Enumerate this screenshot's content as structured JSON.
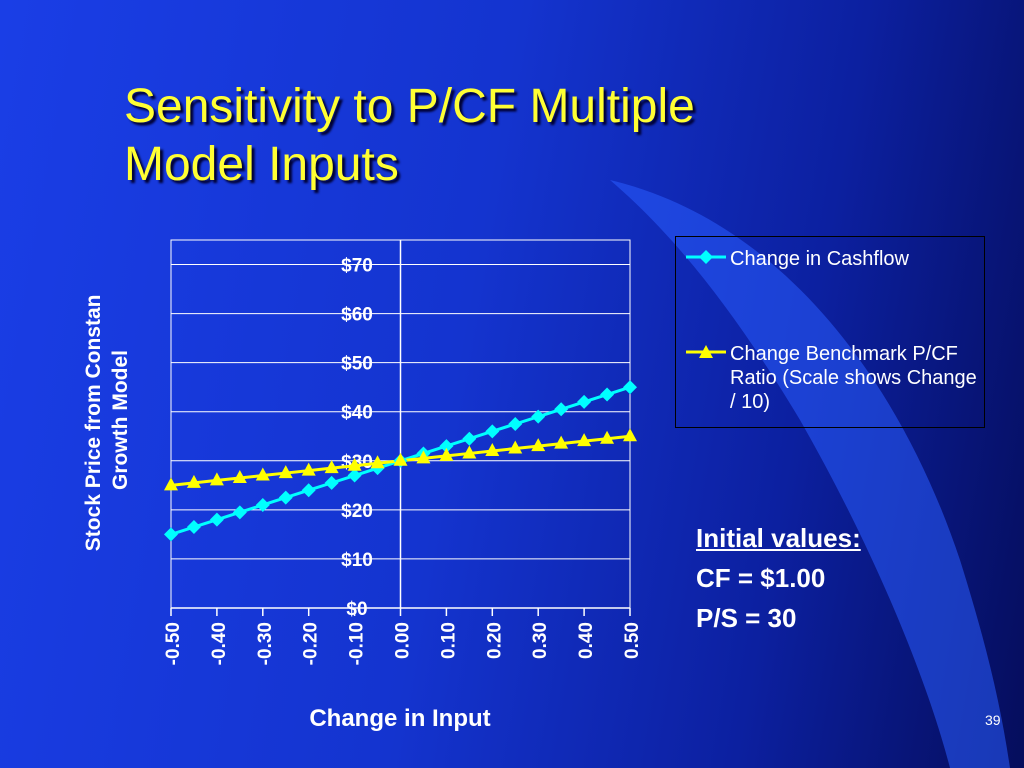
{
  "slide": {
    "title_line1": "Sensitivity to P/CF Multiple",
    "title_line2": "Model Inputs",
    "page_number": "39",
    "colors": {
      "background": "#1434cf",
      "title": "#ffff33",
      "text": "#ffffff"
    }
  },
  "initial_values": {
    "heading": "Initial values:",
    "lines": [
      "CF = $1.00",
      "P/S = 30"
    ]
  },
  "chart_data": {
    "type": "line",
    "xlabel": "Change in Input",
    "ylabel_lines": [
      "Stock Price from Constan",
      "Growth Model"
    ],
    "x": [
      -0.5,
      -0.45,
      -0.4,
      -0.35,
      -0.3,
      -0.25,
      -0.2,
      -0.15,
      -0.1,
      -0.05,
      0.0,
      0.05,
      0.1,
      0.15,
      0.2,
      0.25,
      0.3,
      0.35,
      0.4,
      0.45,
      0.5
    ],
    "xticks": [
      "-0.50",
      "-0.40",
      "-0.30",
      "-0.20",
      "-0.10",
      "0.00",
      "0.10",
      "0.20",
      "0.30",
      "0.40",
      "0.50"
    ],
    "yticks": [
      "$0",
      "$10",
      "$20",
      "$30",
      "$40",
      "$50",
      "$60",
      "$70"
    ],
    "ylim": [
      0,
      75
    ],
    "xlim": [
      -0.5,
      0.5
    ],
    "grid": true,
    "legend_position": "right",
    "series": [
      {
        "name": "Change in Cashflow",
        "marker": "diamond",
        "color": "#00ffff",
        "values": [
          15,
          16.5,
          18,
          19.5,
          21,
          22.5,
          24,
          25.5,
          27,
          28.5,
          30,
          31.5,
          33,
          34.5,
          36,
          37.5,
          39,
          40.5,
          42,
          43.5,
          45
        ]
      },
      {
        "name": "Change Benchmark P/CF Ratio (Scale shows Change / 10)",
        "marker": "triangle",
        "color": "#ffff00",
        "values": [
          25,
          25.5,
          26,
          26.5,
          27,
          27.5,
          28,
          28.5,
          29,
          29.5,
          30,
          30.5,
          31,
          31.5,
          32,
          32.5,
          33,
          33.5,
          34,
          34.5,
          35
        ]
      }
    ]
  }
}
